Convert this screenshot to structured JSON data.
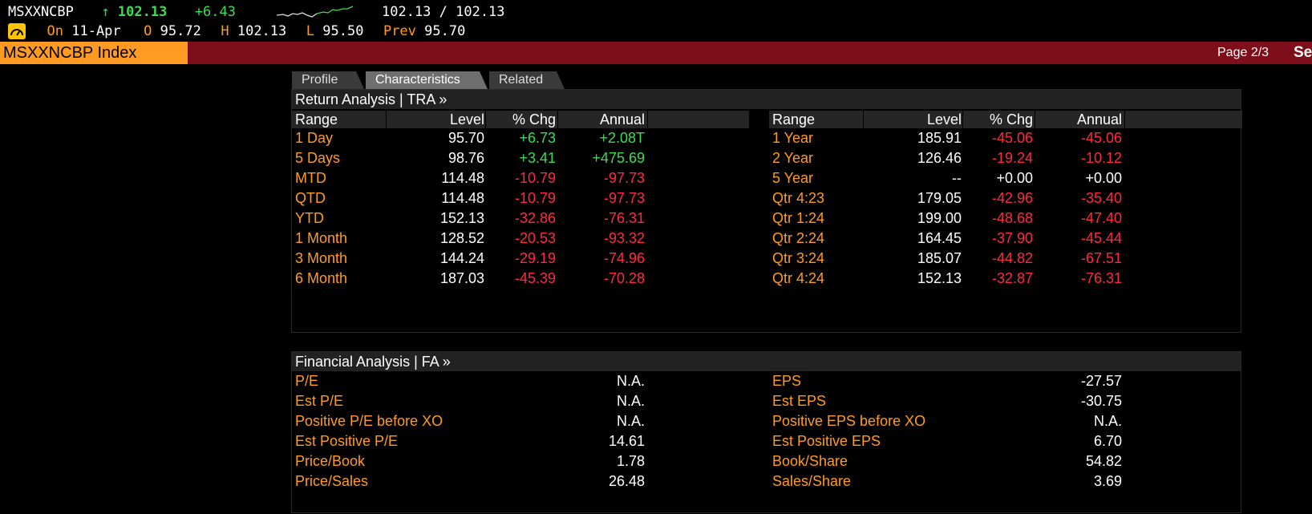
{
  "ticker": {
    "symbol": "MSXXNCBP",
    "arrow": "↑",
    "last": "102.13",
    "change": "+6.43",
    "range": "102.13 / 102.13",
    "on_label": "On",
    "date": "11-Apr",
    "open_label": "O",
    "open": "95.72",
    "high_label": "H",
    "high": "102.13",
    "low_label": "L",
    "low": "95.50",
    "prev_label": "Prev",
    "prev": "95.70"
  },
  "titlebar": {
    "security": "MSXXNCBP Index",
    "page": "Page 2/3",
    "cut": "Se"
  },
  "tabs": [
    {
      "label": "Profile",
      "active": false
    },
    {
      "label": "Characteristics",
      "active": true
    },
    {
      "label": "Related",
      "active": false
    }
  ],
  "return_analysis": {
    "title": "Return Analysis | TRA »",
    "headers": [
      "Range",
      "Level",
      "% Chg",
      "Annual"
    ],
    "left": [
      {
        "range": "1 Day",
        "level": "95.70",
        "chg": "+6.73",
        "annual": "+2.08T"
      },
      {
        "range": "5 Days",
        "level": "98.76",
        "chg": "+3.41",
        "annual": "+475.69"
      },
      {
        "range": "MTD",
        "level": "114.48",
        "chg": "-10.79",
        "annual": "-97.73"
      },
      {
        "range": "QTD",
        "level": "114.48",
        "chg": "-10.79",
        "annual": "-97.73"
      },
      {
        "range": "YTD",
        "level": "152.13",
        "chg": "-32.86",
        "annual": "-76.31"
      },
      {
        "range": "1 Month",
        "level": "128.52",
        "chg": "-20.53",
        "annual": "-93.32"
      },
      {
        "range": "3 Month",
        "level": "144.24",
        "chg": "-29.19",
        "annual": "-74.96"
      },
      {
        "range": "6 Month",
        "level": "187.03",
        "chg": "-45.39",
        "annual": "-70.28"
      }
    ],
    "right": [
      {
        "range": "1 Year",
        "level": "185.91",
        "chg": "-45.06",
        "annual": "-45.06"
      },
      {
        "range": "2 Year",
        "level": "126.46",
        "chg": "-19.24",
        "annual": "-10.12"
      },
      {
        "range": "5 Year",
        "level": "--",
        "chg": "+0.00",
        "annual": "+0.00"
      },
      {
        "range": "Qtr 4:23",
        "level": "179.05",
        "chg": "-42.96",
        "annual": "-35.40"
      },
      {
        "range": "Qtr 1:24",
        "level": "199.00",
        "chg": "-48.68",
        "annual": "-47.40"
      },
      {
        "range": "Qtr 2:24",
        "level": "164.45",
        "chg": "-37.90",
        "annual": "-45.44"
      },
      {
        "range": "Qtr 3:24",
        "level": "185.07",
        "chg": "-44.82",
        "annual": "-67.51"
      },
      {
        "range": "Qtr 4:24",
        "level": "152.13",
        "chg": "-32.87",
        "annual": "-76.31"
      }
    ]
  },
  "financial_analysis": {
    "title": "Financial Analysis | FA »",
    "left": [
      {
        "label": "P/E",
        "value": "N.A."
      },
      {
        "label": "Est P/E",
        "value": "N.A."
      },
      {
        "label": "Positive P/E before XO",
        "value": "N.A."
      },
      {
        "label": "Est Positive P/E",
        "value": "14.61"
      },
      {
        "label": "Price/Book",
        "value": "1.78"
      },
      {
        "label": "Price/Sales",
        "value": "26.48"
      }
    ],
    "right": [
      {
        "label": "EPS",
        "value": "-27.57"
      },
      {
        "label": "Est EPS",
        "value": "-30.75"
      },
      {
        "label": "Positive EPS before XO",
        "value": "N.A."
      },
      {
        "label": "Est Positive EPS",
        "value": "6.70"
      },
      {
        "label": "Book/Share",
        "value": "54.82"
      },
      {
        "label": "Sales/Share",
        "value": "3.69"
      }
    ]
  },
  "colors": {
    "positive": "#3ddc52",
    "negative": "#ff2a3e",
    "label": "#ff9b22",
    "titlebar": "#7d0e1a"
  }
}
